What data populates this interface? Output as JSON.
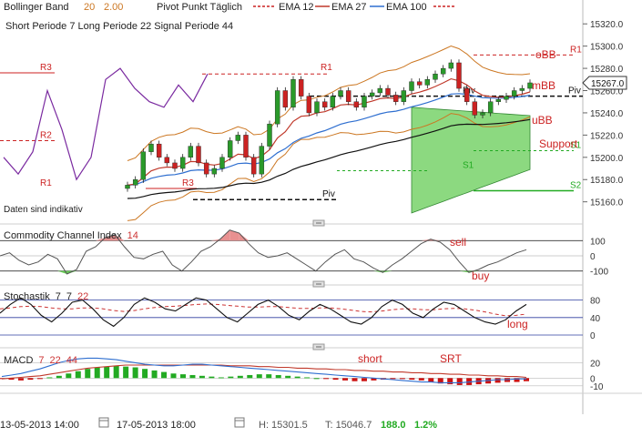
{
  "header": {
    "bollinger_label": "Bollinger Band",
    "bollinger_p1": "20",
    "bollinger_p2": "2.00",
    "pivot_label": "Pivot Punkt Täglich",
    "ema12_label": "EMA 12",
    "ema27_label": "EMA 27",
    "ema100_label": "EMA 100",
    "macd_params": "Short Periode  7   Long Periode  22   Signal Periode  44"
  },
  "colors": {
    "ema12": "#c0392b",
    "ema27": "#2f6fd0",
    "ema100": "#111111",
    "bollinger": "#cc7722",
    "macd_line": "#2f6fd0",
    "signal_line": "#c0392b",
    "cloud": "#66cc55",
    "candle_up": "#2a9a2a",
    "candle_down": "#cc2222",
    "pivot_lines": "#cc2222",
    "support_lines": "#22aa22",
    "indicator_purple": "#7a2aa0",
    "hist_up": "#22aa22",
    "hist_down": "#cc1111"
  },
  "annotations": {
    "obb": "oBB",
    "mbb": "mBB",
    "ubb": "uBB",
    "support": "Support",
    "sell": "sell",
    "buy": "buy",
    "long": "long",
    "short": "short",
    "srt": "SRT",
    "disclaimer": "Daten sind indikativ"
  },
  "chart_data": [
    {
      "type": "candlestick",
      "title": "Bollinger Band 20 2.00 · Pivot Punkt Täglich · EMA 12 · EMA 27 · EMA 100",
      "ylim": [
        15145,
        15330
      ],
      "y_ticks": [
        15160.0,
        15180.0,
        15200.0,
        15220.0,
        15240.0,
        15260.0,
        15280.0,
        15300.0,
        15320.0
      ],
      "current_price": "15267.0",
      "pivot_levels": {
        "R1": 15292,
        "Piv": 15255,
        "S1": 15206,
        "S2": 15170
      },
      "pivot_labels": [
        "R1",
        "Piv",
        "S1",
        "S2",
        "R3",
        "R2",
        "R1",
        "R3",
        "R1",
        "Piv",
        "Piv",
        "S1"
      ],
      "candles_close": [
        15175,
        15180,
        15205,
        15212,
        15200,
        15195,
        15190,
        15200,
        15210,
        15195,
        15185,
        15190,
        15200,
        15215,
        15220,
        15200,
        15185,
        15210,
        15230,
        15260,
        15245,
        15270,
        15255,
        15240,
        15250,
        15245,
        15255,
        15260,
        15250,
        15245,
        15255,
        15258,
        15262,
        15256,
        15250,
        15260,
        15268,
        15265,
        15270,
        15275,
        15280,
        15285,
        15262,
        15250,
        15238,
        15240,
        15250,
        15252,
        15255,
        15260,
        15262,
        15267
      ]
    },
    {
      "type": "line",
      "title": "Commodity Channel Index",
      "period": "14",
      "ylim": [
        -150,
        150
      ],
      "y_ticks": [
        "100",
        "0",
        "-100"
      ],
      "values": [
        0,
        20,
        -30,
        -60,
        -40,
        10,
        -20,
        -120,
        -90,
        30,
        60,
        120,
        140,
        60,
        -10,
        -20,
        10,
        30,
        -60,
        -100,
        -40,
        30,
        60,
        110,
        170,
        150,
        80,
        20,
        -10,
        0,
        20,
        -20,
        -60,
        -100,
        -40,
        10,
        40,
        -20,
        -40,
        -80,
        -110,
        -60,
        -20,
        30,
        80,
        110,
        90,
        40,
        -40,
        -110,
        -90,
        -60,
        -40,
        -10,
        20,
        40
      ]
    },
    {
      "type": "line",
      "title": "Stochastik",
      "params": [
        "7",
        "7",
        "22"
      ],
      "ylim": [
        0,
        100
      ],
      "y_ticks": [
        "80",
        "40",
        "0"
      ],
      "series": [
        {
          "name": "%K",
          "values": [
            50,
            70,
            85,
            70,
            45,
            30,
            50,
            75,
            80,
            60,
            35,
            20,
            40,
            70,
            85,
            75,
            60,
            55,
            70,
            85,
            80,
            60,
            40,
            30,
            50,
            70,
            80,
            65,
            45,
            35,
            55,
            70,
            60,
            45,
            30,
            25,
            40,
            65,
            80,
            70,
            50,
            40,
            60,
            75,
            70,
            55,
            40,
            30,
            25,
            35,
            55,
            70
          ]
        },
        {
          "name": "%D",
          "values": [
            60,
            62,
            65,
            66,
            65,
            62,
            60,
            60,
            62,
            62,
            60,
            56,
            54,
            56,
            60,
            63,
            65,
            66,
            68,
            70,
            71,
            70,
            68,
            66,
            64,
            64,
            65,
            65,
            63,
            61,
            61,
            62,
            62,
            60,
            57,
            54,
            53,
            55,
            58,
            60,
            60,
            58,
            58,
            60,
            61,
            60,
            57,
            53,
            48,
            44,
            45,
            48
          ]
        }
      ]
    },
    {
      "type": "bar",
      "title": "MACD",
      "params": [
        "7",
        "22",
        "44"
      ],
      "ylim": [
        -15,
        30
      ],
      "y_ticks": [
        "20",
        "0",
        "-10"
      ],
      "histogram": [
        -1,
        -2,
        -3,
        -2,
        -1,
        1,
        3,
        6,
        9,
        12,
        14,
        15,
        16,
        15,
        14,
        12,
        10,
        8,
        6,
        5,
        4,
        3,
        2,
        1,
        2,
        3,
        4,
        5,
        5,
        4,
        3,
        2,
        1,
        0,
        -1,
        -2,
        -3,
        -4,
        -4,
        -3,
        -2,
        -1,
        -1,
        -2,
        -3,
        -5,
        -7,
        -8,
        -9,
        -9,
        -8,
        -7,
        -6,
        -5,
        -5,
        -4
      ],
      "series": [
        {
          "name": "MACD",
          "values": [
            2,
            4,
            6,
            9,
            12,
            16,
            20,
            23,
            25,
            26,
            26,
            25,
            24,
            22,
            20,
            18,
            17,
            16,
            16,
            17,
            18,
            18,
            17,
            16,
            15,
            14,
            13,
            12,
            11,
            10,
            9,
            8,
            7,
            6,
            5,
            4,
            3,
            2,
            1,
            0,
            -1,
            -2,
            -3,
            -4,
            -5,
            -5,
            -6,
            -6,
            -6,
            -5,
            -4,
            -3,
            -2,
            -2,
            -1,
            -1
          ]
        },
        {
          "name": "Signal",
          "values": [
            -1,
            0,
            1,
            2,
            3,
            5,
            7,
            9,
            11,
            13,
            14,
            15,
            16,
            17,
            17,
            17,
            17,
            17,
            17,
            17,
            17,
            17,
            17,
            17,
            16,
            16,
            16,
            15,
            15,
            14,
            14,
            13,
            13,
            12,
            12,
            11,
            11,
            10,
            10,
            9,
            9,
            8,
            8,
            7,
            7,
            6,
            6,
            5,
            5,
            4,
            4,
            3,
            3,
            2,
            2,
            1
          ]
        }
      ]
    }
  ],
  "footer": {
    "start_date": "13-05-2013 14:00",
    "end_date": "17-05-2013 18:00",
    "high_label": "H:",
    "high_value": "15301.5",
    "low_label": "T:",
    "low_value": "15046.7",
    "change_value": "188.0",
    "change_pct": "1.2%"
  }
}
